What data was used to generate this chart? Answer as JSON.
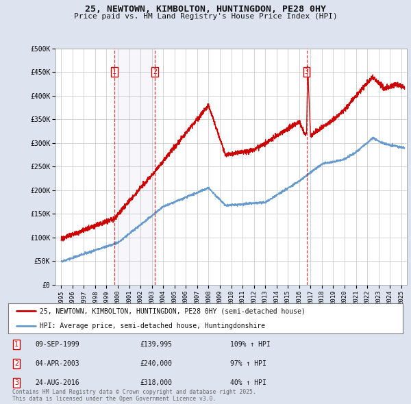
{
  "title_line1": "25, NEWTOWN, KIMBOLTON, HUNTINGDON, PE28 0HY",
  "title_line2": "Price paid vs. HM Land Registry's House Price Index (HPI)",
  "legend_line1": "25, NEWTOWN, KIMBOLTON, HUNTINGDON, PE28 0HY (semi-detached house)",
  "legend_line2": "HPI: Average price, semi-detached house, Huntingdonshire",
  "footnote": "Contains HM Land Registry data © Crown copyright and database right 2025.\nThis data is licensed under the Open Government Licence v3.0.",
  "sale_color": "#cc0000",
  "hpi_color": "#6699cc",
  "background_color": "#dde4f0",
  "plot_bg_color": "#ffffff",
  "grid_color": "#cccccc",
  "ylim": [
    0,
    500000
  ],
  "yticks": [
    0,
    50000,
    100000,
    150000,
    200000,
    250000,
    300000,
    350000,
    400000,
    450000,
    500000
  ],
  "ytick_labels": [
    "£0",
    "£50K",
    "£100K",
    "£150K",
    "£200K",
    "£250K",
    "£300K",
    "£350K",
    "£400K",
    "£450K",
    "£500K"
  ],
  "transactions": [
    {
      "label": "1",
      "date": "09-SEP-1999",
      "year": 1999.69,
      "price": 139995,
      "pct": "109%",
      "dir": "↑"
    },
    {
      "label": "2",
      "date": "04-APR-2003",
      "year": 2003.26,
      "price": 240000,
      "pct": "97%",
      "dir": "↑"
    },
    {
      "label": "3",
      "date": "24-AUG-2016",
      "year": 2016.65,
      "price": 318000,
      "pct": "40%",
      "dir": "↑"
    }
  ],
  "table_rows": [
    [
      "1",
      "09-SEP-1999",
      "£139,995",
      "109% ↑ HPI"
    ],
    [
      "2",
      "04-APR-2003",
      "£240,000",
      "97% ↑ HPI"
    ],
    [
      "3",
      "24-AUG-2016",
      "£318,000",
      "40% ↑ HPI"
    ]
  ],
  "xlim_start": 1994.5,
  "xlim_end": 2025.5,
  "xtick_years": [
    1995,
    1996,
    1997,
    1998,
    1999,
    2000,
    2001,
    2002,
    2003,
    2004,
    2005,
    2006,
    2007,
    2008,
    2009,
    2010,
    2011,
    2012,
    2013,
    2014,
    2015,
    2016,
    2017,
    2018,
    2019,
    2020,
    2021,
    2022,
    2023,
    2024,
    2025
  ]
}
